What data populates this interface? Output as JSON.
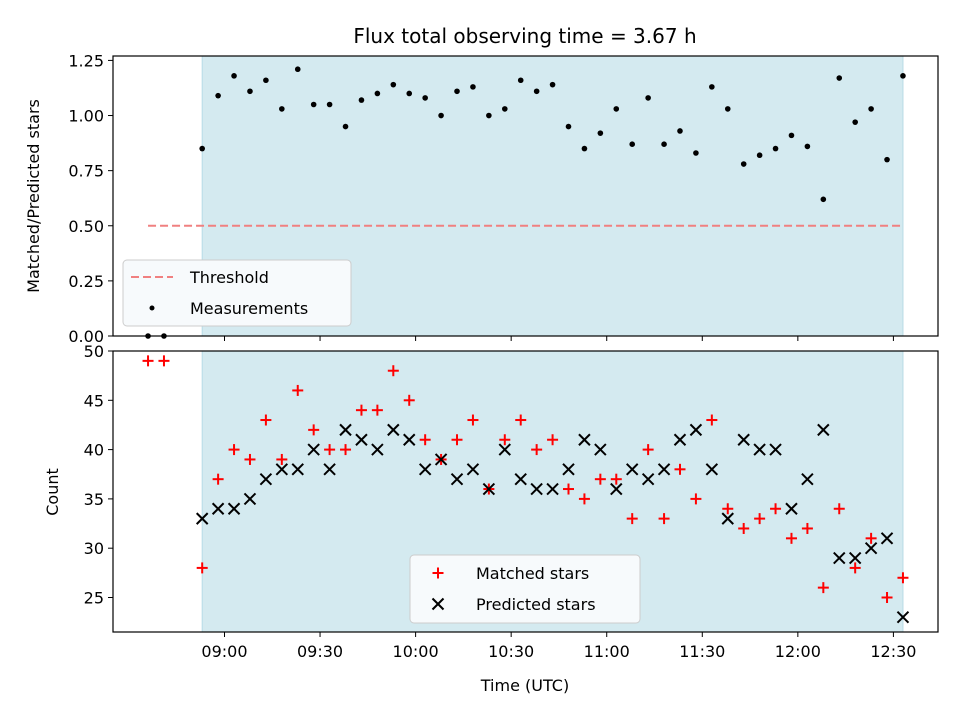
{
  "title": "Flux total observing time = 3.67 h",
  "colors": {
    "shade": "#d4eaf0",
    "shade_edge": "#b8dbe6",
    "threshold": "#f08080",
    "measurement": "#000000",
    "matched": "#ff0000",
    "predicted": "#000000",
    "legend_bg": "#f7fafc"
  },
  "chart_data": [
    {
      "type": "scatter",
      "ylabel": "Matched/Predicted stars",
      "ylim": [
        0,
        1.27
      ],
      "yticks": [
        "0.00",
        "0.25",
        "0.50",
        "0.75",
        "1.00",
        "1.25"
      ],
      "ytick_values": [
        0,
        0.25,
        0.5,
        0.75,
        1.0,
        1.25
      ],
      "grid": false,
      "shaded_x_range": [
        "08:53",
        "12:33"
      ],
      "legend": {
        "placement": "lower-left",
        "entries": [
          "Threshold",
          "Measurements"
        ]
      },
      "threshold": {
        "name": "Threshold",
        "value": 0.5,
        "x_range": [
          "08:36",
          "12:33"
        ],
        "style": "dashed"
      },
      "series": [
        {
          "name": "Measurements",
          "x": [
            "08:36",
            "08:41",
            "08:53",
            "08:58",
            "09:03",
            "09:08",
            "09:13",
            "09:18",
            "09:23",
            "09:28",
            "09:33",
            "09:38",
            "09:43",
            "09:48",
            "09:53",
            "09:58",
            "10:03",
            "10:08",
            "10:13",
            "10:18",
            "10:23",
            "10:28",
            "10:33",
            "10:38",
            "10:43",
            "10:48",
            "10:53",
            "10:58",
            "11:03",
            "11:08",
            "11:13",
            "11:18",
            "11:23",
            "11:28",
            "11:33",
            "11:38",
            "11:43",
            "11:48",
            "11:53",
            "11:58",
            "12:03",
            "12:08",
            "12:13",
            "12:18",
            "12:23",
            "12:28",
            "12:33"
          ],
          "y": [
            0,
            0,
            0.85,
            1.09,
            1.18,
            1.11,
            1.16,
            1.03,
            1.21,
            1.05,
            1.05,
            0.95,
            1.07,
            1.1,
            1.14,
            1.1,
            1.08,
            1.0,
            1.11,
            1.13,
            1.0,
            1.03,
            1.16,
            1.11,
            1.14,
            0.95,
            0.85,
            0.92,
            1.03,
            0.87,
            1.08,
            0.87,
            0.93,
            0.83,
            1.13,
            1.03,
            0.78,
            0.82,
            0.85,
            0.91,
            0.86,
            0.62,
            1.17,
            0.97,
            1.03,
            0.8,
            1.18
          ]
        }
      ]
    },
    {
      "type": "scatter",
      "ylabel": "Count",
      "xlabel": "Time (UTC)",
      "ylim": [
        21.5,
        50
      ],
      "yticks": [
        "25",
        "30",
        "35",
        "40",
        "45",
        "50"
      ],
      "ytick_values": [
        25,
        30,
        35,
        40,
        45,
        50
      ],
      "xticks": [
        "09:00",
        "09:30",
        "10:00",
        "10:30",
        "11:00",
        "11:30",
        "12:00",
        "12:30"
      ],
      "xlim": [
        "08:25",
        "12:44"
      ],
      "grid": false,
      "shaded_x_range": [
        "08:53",
        "12:33"
      ],
      "legend": {
        "placement": "lower-center",
        "entries": [
          "Matched stars",
          "Predicted stars"
        ]
      },
      "series": [
        {
          "name": "Matched stars",
          "marker": "plus",
          "x": [
            "08:36",
            "08:41",
            "08:53",
            "08:58",
            "09:03",
            "09:08",
            "09:13",
            "09:18",
            "09:23",
            "09:28",
            "09:33",
            "09:38",
            "09:43",
            "09:48",
            "09:53",
            "09:58",
            "10:03",
            "10:08",
            "10:13",
            "10:18",
            "10:23",
            "10:28",
            "10:33",
            "10:38",
            "10:43",
            "10:48",
            "10:53",
            "10:58",
            "11:03",
            "11:08",
            "11:13",
            "11:18",
            "11:23",
            "11:28",
            "11:33",
            "11:38",
            "11:43",
            "11:48",
            "11:53",
            "11:58",
            "12:03",
            "12:08",
            "12:13",
            "12:18",
            "12:23",
            "12:28",
            "12:33"
          ],
          "y": [
            49,
            49,
            28,
            37,
            40,
            39,
            43,
            39,
            46,
            42,
            40,
            40,
            44,
            44,
            48,
            45,
            41,
            39,
            41,
            43,
            36,
            41,
            43,
            40,
            41,
            36,
            35,
            37,
            37,
            33,
            40,
            33,
            38,
            35,
            43,
            34,
            32,
            33,
            34,
            31,
            32,
            26,
            34,
            28,
            31,
            25,
            27
          ]
        },
        {
          "name": "Predicted stars",
          "marker": "x",
          "x": [
            "08:53",
            "08:58",
            "09:03",
            "09:08",
            "09:13",
            "09:18",
            "09:23",
            "09:28",
            "09:33",
            "09:38",
            "09:43",
            "09:48",
            "09:53",
            "09:58",
            "10:03",
            "10:08",
            "10:13",
            "10:18",
            "10:23",
            "10:28",
            "10:33",
            "10:38",
            "10:43",
            "10:48",
            "10:53",
            "10:58",
            "11:03",
            "11:08",
            "11:13",
            "11:18",
            "11:23",
            "11:28",
            "11:33",
            "11:38",
            "11:43",
            "11:48",
            "11:53",
            "11:58",
            "12:03",
            "12:08",
            "12:13",
            "12:18",
            "12:23",
            "12:28",
            "12:33"
          ],
          "y": [
            33,
            34,
            34,
            35,
            37,
            38,
            38,
            40,
            38,
            42,
            41,
            40,
            42,
            41,
            38,
            39,
            37,
            38,
            36,
            40,
            37,
            36,
            36,
            38,
            41,
            40,
            36,
            38,
            37,
            38,
            41,
            42,
            38,
            33,
            41,
            40,
            40,
            34,
            37,
            42,
            29,
            29,
            30,
            31,
            23
          ]
        }
      ]
    }
  ]
}
